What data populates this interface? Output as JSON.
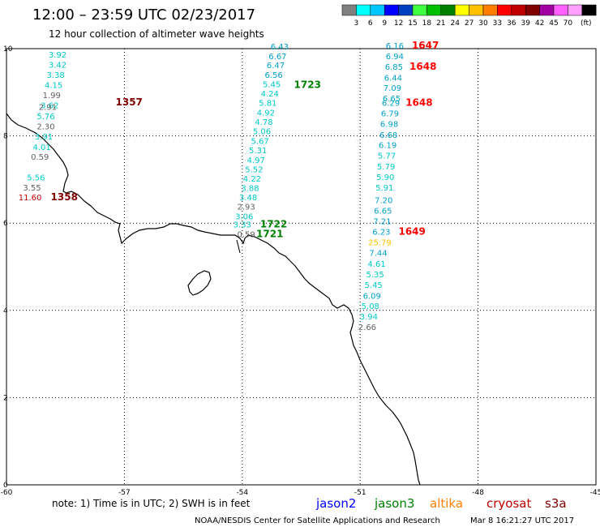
{
  "header": {
    "title": "12:00 – 23:59 UTC 02/23/2017",
    "subtitle": "12 hour collection of altimeter wave heights"
  },
  "legend": {
    "unit": "(ft)",
    "colors": [
      "#808080",
      "#00ffff",
      "#00c8ff",
      "#0000ff",
      "#0040c0",
      "#40ff40",
      "#00c000",
      "#008000",
      "#ffff00",
      "#ffc000",
      "#ff8000",
      "#ff0000",
      "#c00000",
      "#800000",
      "#a000a0",
      "#ff60ff",
      "#ffa0ff",
      "#000000"
    ],
    "labels": [
      "3",
      "6",
      "9",
      "12",
      "15",
      "18",
      "21",
      "24",
      "27",
      "30",
      "33",
      "36",
      "39",
      "42",
      "45",
      "70"
    ]
  },
  "axes": {
    "x_ticks": [
      "-60",
      "-57",
      "-54",
      "-51",
      "-48",
      "-45"
    ],
    "y_ticks": [
      "0",
      "2",
      "4",
      "6",
      "8",
      "10"
    ]
  },
  "footer": {
    "note": "note: 1) Time is in UTC; 2) SWH is in feet",
    "credit": "NOAA/NESDIS Center for Satellite Applications and Research",
    "timestamp": "Mar  8 16:21:27 UTC 2017"
  },
  "satellites": [
    {
      "name": "jason2",
      "color": "#0000ff"
    },
    {
      "name": "jason3",
      "color": "#008000"
    },
    {
      "name": "altika",
      "color": "#ff8000"
    },
    {
      "name": "cryosat",
      "color": "#c00000"
    },
    {
      "name": "s3a",
      "color": "#800000"
    }
  ],
  "tracks": [
    {
      "id": "track-1357",
      "time": "1357",
      "time_color": "#800000",
      "time_lon": -56.88,
      "time_lat": 8.7,
      "obs": [
        {
          "lon": -58.7,
          "lat": 9.8,
          "v": "3.92",
          "c": "#00c8c8"
        },
        {
          "lon": -58.7,
          "lat": 9.56,
          "v": "3.42",
          "c": "#00c8c8"
        },
        {
          "lon": -58.75,
          "lat": 9.33,
          "v": "3.38",
          "c": "#00c8c8"
        },
        {
          "lon": -58.8,
          "lat": 9.1,
          "v": "4.15",
          "c": "#00c8c8"
        },
        {
          "lon": -58.85,
          "lat": 8.87,
          "v": "1.99",
          "c": "#606060"
        },
        {
          "lon": -58.9,
          "lat": 8.63,
          "v": "3.62",
          "c": "#00c8c8"
        },
        {
          "lon": -58.95,
          "lat": 8.6,
          "v": "2.91",
          "c": "#606060"
        },
        {
          "lon": -59.0,
          "lat": 8.38,
          "v": "5.76",
          "c": "#00c8c8"
        },
        {
          "lon": -59.0,
          "lat": 8.15,
          "v": "2.30",
          "c": "#606060"
        },
        {
          "lon": -59.05,
          "lat": 7.92,
          "v": "3.91",
          "c": "#00c8c8"
        },
        {
          "lon": -59.1,
          "lat": 7.68,
          "v": "4.01",
          "c": "#00c8c8"
        },
        {
          "lon": -59.15,
          "lat": 7.45,
          "v": "0.59",
          "c": "#606060"
        },
        {
          "lon": -59.25,
          "lat": 6.98,
          "v": "5.56",
          "c": "#00c8c8"
        },
        {
          "lon": -59.35,
          "lat": 6.75,
          "v": "3.55",
          "c": "#606060"
        },
        {
          "lon": -59.4,
          "lat": 6.52,
          "v": "11.60",
          "c": "#c00000"
        }
      ]
    },
    {
      "id": "track-1358",
      "time": "1358",
      "time_color": "#800000",
      "time_lon": -58.53,
      "time_lat": 6.52,
      "obs": []
    },
    {
      "id": "track-1723",
      "time": "1723",
      "time_color": "#008000",
      "time_lon": -52.34,
      "time_lat": 9.1,
      "obs": [
        {
          "lon": -53.05,
          "lat": 9.98,
          "v": "6.43",
          "c": "#00a0c8"
        },
        {
          "lon": -53.1,
          "lat": 9.76,
          "v": "6.67",
          "c": "#00a0c8"
        },
        {
          "lon": -53.15,
          "lat": 9.55,
          "v": "6.47",
          "c": "#00a0c8"
        },
        {
          "lon": -53.2,
          "lat": 9.33,
          "v": "6.56",
          "c": "#00a0c8"
        },
        {
          "lon": -53.25,
          "lat": 9.12,
          "v": "5.45",
          "c": "#00c8c8"
        },
        {
          "lon": -53.3,
          "lat": 8.9,
          "v": "4.24",
          "c": "#00c8c8"
        },
        {
          "lon": -53.35,
          "lat": 8.69,
          "v": "5.81",
          "c": "#00c8c8"
        },
        {
          "lon": -53.4,
          "lat": 8.47,
          "v": "4.92",
          "c": "#00c8c8"
        },
        {
          "lon": -53.45,
          "lat": 8.25,
          "v": "4.78",
          "c": "#00c8c8"
        },
        {
          "lon": -53.5,
          "lat": 8.04,
          "v": "5.06",
          "c": "#00c8c8"
        },
        {
          "lon": -53.55,
          "lat": 7.82,
          "v": "5.67",
          "c": "#00c8c8"
        },
        {
          "lon": -53.6,
          "lat": 7.6,
          "v": "5.31",
          "c": "#00c8c8"
        },
        {
          "lon": -53.65,
          "lat": 7.38,
          "v": "4.97",
          "c": "#00c8c8"
        },
        {
          "lon": -53.7,
          "lat": 7.17,
          "v": "5.52",
          "c": "#00c8c8"
        },
        {
          "lon": -53.75,
          "lat": 6.95,
          "v": "4.22",
          "c": "#00c8c8"
        },
        {
          "lon": -53.8,
          "lat": 6.74,
          "v": "3.88",
          "c": "#00c8c8"
        },
        {
          "lon": -53.85,
          "lat": 6.52,
          "v": "3.48",
          "c": "#00c8c8"
        },
        {
          "lon": -53.9,
          "lat": 6.31,
          "v": "2.93",
          "c": "#606060"
        },
        {
          "lon": -53.95,
          "lat": 6.09,
          "v": "3.06",
          "c": "#00c8c8"
        },
        {
          "lon": -54.0,
          "lat": 5.9,
          "v": "3.33",
          "c": "#00c8c8"
        }
      ]
    },
    {
      "id": "track-1722",
      "time": "1722",
      "time_color": "#008000",
      "time_lon": -53.2,
      "time_lat": 5.9,
      "obs": []
    },
    {
      "id": "track-1721",
      "time": "1721",
      "time_color": "#008000",
      "time_lon": -53.3,
      "time_lat": 5.68,
      "obs": [
        {
          "lon": -53.9,
          "lat": 5.68,
          "v": "0.59",
          "c": "#606060"
        }
      ]
    },
    {
      "id": "track-1647",
      "time": "1647",
      "time_color": "#ff0000",
      "time_lon": -49.34,
      "time_lat": 10.0,
      "obs": [
        {
          "lon": -50.12,
          "lat": 10.0,
          "v": "6.16",
          "c": "#00a0c8"
        },
        {
          "lon": -50.12,
          "lat": 9.76,
          "v": "6.94",
          "c": "#00a0c8"
        },
        {
          "lon": -50.14,
          "lat": 9.52,
          "v": "6.85",
          "c": "#00a0c8"
        },
        {
          "lon": -50.16,
          "lat": 9.27,
          "v": "6.44",
          "c": "#00a0c8"
        },
        {
          "lon": -50.18,
          "lat": 9.03,
          "v": "7.09",
          "c": "#00a0c8"
        },
        {
          "lon": -50.2,
          "lat": 8.79,
          "v": "6.65",
          "c": "#00a0c8"
        },
        {
          "lon": -50.22,
          "lat": 8.69,
          "v": "6.29",
          "c": "#00a0c8"
        },
        {
          "lon": -50.24,
          "lat": 8.45,
          "v": "6.79",
          "c": "#00a0c8"
        },
        {
          "lon": -50.26,
          "lat": 8.21,
          "v": "6.98",
          "c": "#00a0c8"
        },
        {
          "lon": -50.28,
          "lat": 7.96,
          "v": "6.68",
          "c": "#00a0c8"
        },
        {
          "lon": -50.3,
          "lat": 7.72,
          "v": "6.19",
          "c": "#00a0c8"
        },
        {
          "lon": -50.32,
          "lat": 7.48,
          "v": "5.77",
          "c": "#00c8c8"
        },
        {
          "lon": -50.34,
          "lat": 7.23,
          "v": "5.79",
          "c": "#00c8c8"
        },
        {
          "lon": -50.36,
          "lat": 6.99,
          "v": "5.90",
          "c": "#00c8c8"
        },
        {
          "lon": -50.38,
          "lat": 6.75,
          "v": "5.91",
          "c": "#00c8c8"
        },
        {
          "lon": -50.4,
          "lat": 6.46,
          "v": "7.20",
          "c": "#00a0c8"
        },
        {
          "lon": -50.42,
          "lat": 6.22,
          "v": "6.65",
          "c": "#00a0c8"
        },
        {
          "lon": -50.44,
          "lat": 5.98,
          "v": "7.21",
          "c": "#00a0c8"
        },
        {
          "lon": -50.46,
          "lat": 5.73,
          "v": "6.23",
          "c": "#00a0c8"
        },
        {
          "lon": -50.5,
          "lat": 5.49,
          "v": "25.79",
          "c": "#ffc000"
        },
        {
          "lon": -50.54,
          "lat": 5.25,
          "v": "7.44",
          "c": "#00a0c8"
        },
        {
          "lon": -50.58,
          "lat": 5.0,
          "v": "4.61",
          "c": "#00c8c8"
        },
        {
          "lon": -50.62,
          "lat": 4.76,
          "v": "5.35",
          "c": "#00c8c8"
        },
        {
          "lon": -50.66,
          "lat": 4.52,
          "v": "5.45",
          "c": "#00c8c8"
        },
        {
          "lon": -50.7,
          "lat": 4.27,
          "v": "6.09",
          "c": "#00a0c8"
        },
        {
          "lon": -50.74,
          "lat": 4.03,
          "v": "5.08",
          "c": "#00c8c8"
        },
        {
          "lon": -50.78,
          "lat": 3.79,
          "v": "3.94",
          "c": "#00c8c8"
        },
        {
          "lon": -50.82,
          "lat": 3.55,
          "v": "2.66",
          "c": "#606060"
        }
      ]
    },
    {
      "id": "track-1648a",
      "time": "1648",
      "time_color": "#ff0000",
      "time_lon": -49.4,
      "time_lat": 9.52,
      "obs": []
    },
    {
      "id": "track-1648b",
      "time": "1648",
      "time_color": "#ff0000",
      "time_lon": -49.5,
      "time_lat": 8.69,
      "obs": []
    },
    {
      "id": "track-1649",
      "time": "1649",
      "time_color": "#ff0000",
      "time_lon": -49.68,
      "time_lat": 5.73,
      "obs": []
    }
  ]
}
